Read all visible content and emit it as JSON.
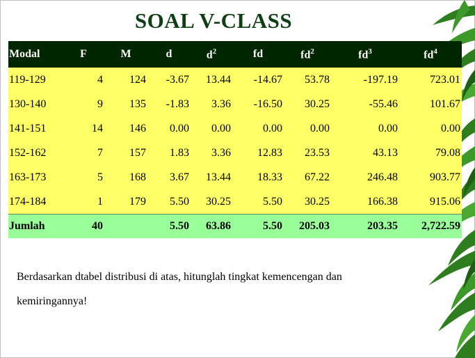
{
  "slide": {
    "title": "SOAL V-CLASS",
    "question": "Berdasarkan dtabel distribusi di atas, hitunglah tingkat kemencengan dan kemiringannya!"
  },
  "table": {
    "headers": [
      {
        "base": "Modal",
        "sup": ""
      },
      {
        "base": "F",
        "sup": ""
      },
      {
        "base": "M",
        "sup": ""
      },
      {
        "base": "d",
        "sup": ""
      },
      {
        "base": "d",
        "sup": "2"
      },
      {
        "base": "fd",
        "sup": ""
      },
      {
        "base": "fd",
        "sup": "2"
      },
      {
        "base": "fd",
        "sup": "3"
      },
      {
        "base": "fd",
        "sup": "4"
      }
    ],
    "rows": [
      [
        "119-129",
        "4",
        "124",
        "-3.67",
        "13.44",
        "-14.67",
        "53.78",
        "-197.19",
        "723.01"
      ],
      [
        "130-140",
        "9",
        "135",
        "-1.83",
        "3.36",
        "-16.50",
        "30.25",
        "-55.46",
        "101.67"
      ],
      [
        "141-151",
        "14",
        "146",
        "0.00",
        "0.00",
        "0.00",
        "0.00",
        "0.00",
        "0.00"
      ],
      [
        "152-162",
        "7",
        "157",
        "1.83",
        "3.36",
        "12.83",
        "23.53",
        "43.13",
        "79.08"
      ],
      [
        "163-173",
        "5",
        "168",
        "3.67",
        "13.44",
        "18.33",
        "67.22",
        "246.48",
        "903.77"
      ],
      [
        "174-184",
        "1",
        "179",
        "5.50",
        "30.25",
        "5.50",
        "30.25",
        "166.38",
        "915.06"
      ]
    ],
    "total": [
      "Jumlah",
      "40",
      "",
      "5.50",
      "63.86",
      "5.50",
      "205.03",
      "203.35",
      "2,722.59"
    ]
  },
  "colors": {
    "title": "#0e3e14",
    "header_bg": "#002600",
    "row_bg": "#ffff66",
    "total_bg": "#99ff99",
    "leaf": "#2e7d1e"
  },
  "decoration": {
    "icon": "bamboo-leaves-icon"
  }
}
